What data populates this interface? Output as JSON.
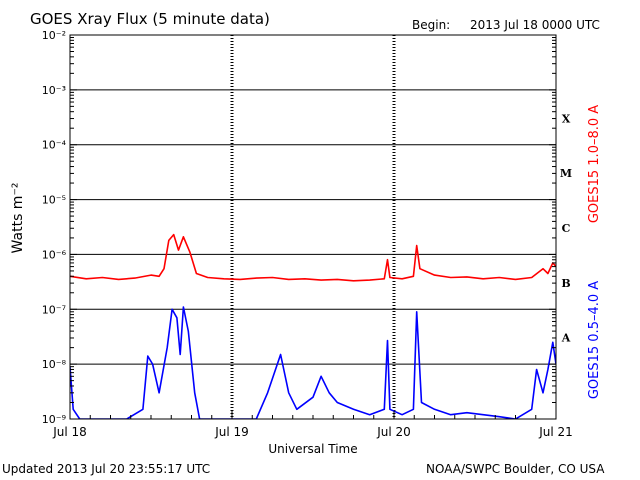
{
  "header": {
    "title": "GOES Xray Flux (5 minute data)",
    "begin_label": "Begin:",
    "begin_value": "2013 Jul 18 0000 UTC"
  },
  "footer": {
    "updated": "Updated 2013 Jul 20 23:55:17 UTC",
    "source": "NOAA/SWPC Boulder, CO USA"
  },
  "colors": {
    "long_channel": "#ff0000",
    "short_channel": "#0000ff",
    "axis": "#000000"
  },
  "chart_data": {
    "type": "line",
    "title": "GOES Xray Flux (5 minute data)",
    "xlabel": "Universal Time",
    "ylabel": "Watts m⁻²",
    "yscale": "log",
    "ylim": [
      1e-09,
      0.01
    ],
    "xlim_days": [
      0,
      3
    ],
    "x_ticks": [
      {
        "day": 0,
        "label": "Jul 18"
      },
      {
        "day": 1,
        "label": "Jul 19"
      },
      {
        "day": 2,
        "label": "Jul 20"
      },
      {
        "day": 3,
        "label": "Jul 21"
      }
    ],
    "y_ticks": [
      {
        "exp": -9,
        "label": "10⁻⁹"
      },
      {
        "exp": -8,
        "label": "10⁻⁸"
      },
      {
        "exp": -7,
        "label": "10⁻⁷"
      },
      {
        "exp": -6,
        "label": "10⁻⁶"
      },
      {
        "exp": -5,
        "label": "10⁻⁵"
      },
      {
        "exp": -4,
        "label": "10⁻⁴"
      },
      {
        "exp": -3,
        "label": "10⁻³"
      },
      {
        "exp": -2,
        "label": "10⁻²"
      }
    ],
    "flare_classes": [
      {
        "label": "X",
        "exp": -4
      },
      {
        "label": "M",
        "exp": -5
      },
      {
        "label": "C",
        "exp": -6
      },
      {
        "label": "B",
        "exp": -7
      },
      {
        "label": "A",
        "exp": -8
      }
    ],
    "series": [
      {
        "name": "GOES15 1.0–8.0 A",
        "color": "#ff0000",
        "points": [
          [
            0.0,
            4e-07
          ],
          [
            0.1,
            3.6e-07
          ],
          [
            0.2,
            3.8e-07
          ],
          [
            0.3,
            3.5e-07
          ],
          [
            0.4,
            3.7e-07
          ],
          [
            0.5,
            4.2e-07
          ],
          [
            0.55,
            4e-07
          ],
          [
            0.58,
            5.5e-07
          ],
          [
            0.61,
            1.8e-06
          ],
          [
            0.64,
            2.3e-06
          ],
          [
            0.67,
            1.2e-06
          ],
          [
            0.7,
            2.1e-06
          ],
          [
            0.74,
            1.1e-06
          ],
          [
            0.78,
            4.5e-07
          ],
          [
            0.85,
            3.8e-07
          ],
          [
            0.95,
            3.6e-07
          ],
          [
            1.05,
            3.5e-07
          ],
          [
            1.15,
            3.7e-07
          ],
          [
            1.25,
            3.8e-07
          ],
          [
            1.35,
            3.5e-07
          ],
          [
            1.45,
            3.6e-07
          ],
          [
            1.55,
            3.4e-07
          ],
          [
            1.65,
            3.5e-07
          ],
          [
            1.75,
            3.3e-07
          ],
          [
            1.85,
            3.4e-07
          ],
          [
            1.94,
            3.6e-07
          ],
          [
            1.96,
            8e-07
          ],
          [
            1.975,
            3.8e-07
          ],
          [
            2.05,
            3.6e-07
          ],
          [
            2.12,
            4e-07
          ],
          [
            2.14,
            1.45e-06
          ],
          [
            2.16,
            5.5e-07
          ],
          [
            2.25,
            4.2e-07
          ],
          [
            2.35,
            3.8e-07
          ],
          [
            2.45,
            3.9e-07
          ],
          [
            2.55,
            3.6e-07
          ],
          [
            2.65,
            3.8e-07
          ],
          [
            2.75,
            3.5e-07
          ],
          [
            2.85,
            3.8e-07
          ],
          [
            2.92,
            5.5e-07
          ],
          [
            2.95,
            4.5e-07
          ],
          [
            2.98,
            7e-07
          ],
          [
            3.0,
            6e-07
          ]
        ]
      },
      {
        "name": "GOES15 0.5–4.0 A",
        "color": "#0000ff",
        "points": [
          [
            0.0,
            9e-09
          ],
          [
            0.02,
            1.5e-09
          ],
          [
            0.06,
            1e-09
          ],
          [
            0.1,
            1e-09
          ],
          [
            0.35,
            1e-09
          ],
          [
            0.45,
            1.5e-09
          ],
          [
            0.48,
            1.4e-08
          ],
          [
            0.51,
            1e-08
          ],
          [
            0.55,
            3e-09
          ],
          [
            0.6,
            2e-08
          ],
          [
            0.63,
            1e-07
          ],
          [
            0.66,
            7e-08
          ],
          [
            0.68,
            1.5e-08
          ],
          [
            0.7,
            1.1e-07
          ],
          [
            0.73,
            4e-08
          ],
          [
            0.77,
            3e-09
          ],
          [
            0.8,
            1e-09
          ],
          [
            1.0,
            1e-09
          ],
          [
            1.15,
            1e-09
          ],
          [
            1.22,
            3e-09
          ],
          [
            1.3,
            1.5e-08
          ],
          [
            1.35,
            3e-09
          ],
          [
            1.4,
            1.5e-09
          ],
          [
            1.5,
            2.5e-09
          ],
          [
            1.55,
            6e-09
          ],
          [
            1.6,
            3e-09
          ],
          [
            1.65,
            2e-09
          ],
          [
            1.75,
            1.5e-09
          ],
          [
            1.85,
            1.2e-09
          ],
          [
            1.94,
            1.5e-09
          ],
          [
            1.96,
            2.7e-08
          ],
          [
            1.975,
            1.5e-09
          ],
          [
            2.05,
            1.2e-09
          ],
          [
            2.12,
            1.5e-09
          ],
          [
            2.14,
            9e-08
          ],
          [
            2.17,
            2e-09
          ],
          [
            2.25,
            1.5e-09
          ],
          [
            2.35,
            1.2e-09
          ],
          [
            2.45,
            1.3e-09
          ],
          [
            2.55,
            1.2e-09
          ],
          [
            2.65,
            1.1e-09
          ],
          [
            2.75,
            1e-09
          ],
          [
            2.85,
            1.5e-09
          ],
          [
            2.88,
            8e-09
          ],
          [
            2.92,
            3e-09
          ],
          [
            2.95,
            8e-09
          ],
          [
            2.98,
            2.5e-08
          ],
          [
            3.0,
            1e-08
          ]
        ]
      }
    ]
  }
}
